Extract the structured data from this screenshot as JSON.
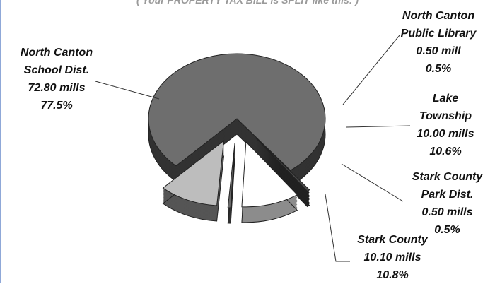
{
  "chart_data": {
    "type": "pie",
    "title": "( Your PROPERTY TAX BILL is SPLIT like this: )",
    "categories": [
      "North Canton School Dist.",
      "North Canton Public Library",
      "Lake Township",
      "Stark County Park Dist.",
      "Stark County"
    ],
    "mills_labels": [
      "72.80 mills",
      "0.50 mill",
      "10.00 mills",
      "0.50 mills",
      "10.10 mills"
    ],
    "values": [
      77.5,
      0.5,
      10.6,
      0.5,
      10.8
    ],
    "value_labels": [
      "77.5%",
      "0.5%",
      "10.6%",
      "0.5%",
      "10.8%"
    ],
    "colors": [
      "#6e6e6e",
      "#4a4a4a",
      "#ffffff",
      "#6a6a6a",
      "#bdbdbd"
    ]
  }
}
